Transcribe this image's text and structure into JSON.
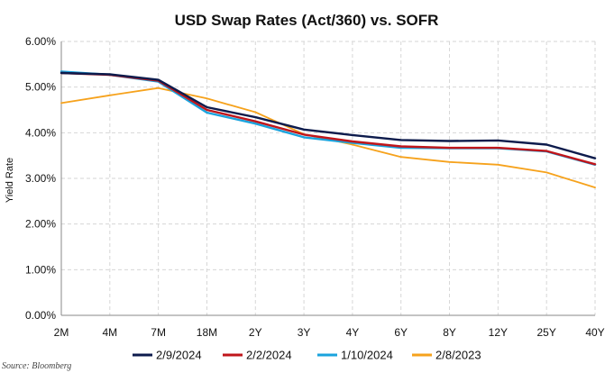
{
  "chart_data": {
    "type": "line",
    "title": "USD Swap Rates (Act/360) vs. SOFR",
    "xlabel": "",
    "ylabel": "Yield Rate",
    "categories": [
      "2M",
      "4M",
      "7M",
      "18M",
      "2Y",
      "3Y",
      "4Y",
      "6Y",
      "8Y",
      "12Y",
      "25Y",
      "40Y"
    ],
    "y_ticks": [
      "0.00%",
      "1.00%",
      "2.00%",
      "3.00%",
      "4.00%",
      "5.00%",
      "6.00%"
    ],
    "ylim": [
      0,
      6
    ],
    "grid": true,
    "legend_position": "bottom",
    "series": [
      {
        "name": "2/9/2024",
        "color": "#0d1b4c",
        "values": [
          5.31,
          5.28,
          5.16,
          4.56,
          4.34,
          4.07,
          3.95,
          3.84,
          3.82,
          3.83,
          3.74,
          3.44
        ]
      },
      {
        "name": "2/2/2024",
        "color": "#c0161b",
        "values": [
          5.31,
          5.27,
          5.14,
          4.5,
          4.25,
          3.96,
          3.81,
          3.7,
          3.67,
          3.67,
          3.6,
          3.31
        ]
      },
      {
        "name": "1/10/2024",
        "color": "#1aa3dd",
        "values": [
          5.34,
          5.27,
          5.12,
          4.44,
          4.2,
          3.9,
          3.78,
          3.67,
          3.66,
          3.66,
          3.59,
          3.3
        ]
      },
      {
        "name": "2/8/2023",
        "color": "#f6a21c",
        "values": [
          4.65,
          4.82,
          4.98,
          4.75,
          4.45,
          3.97,
          3.74,
          3.47,
          3.36,
          3.3,
          3.13,
          2.8
        ]
      }
    ]
  },
  "source": "Source: Bloomberg"
}
